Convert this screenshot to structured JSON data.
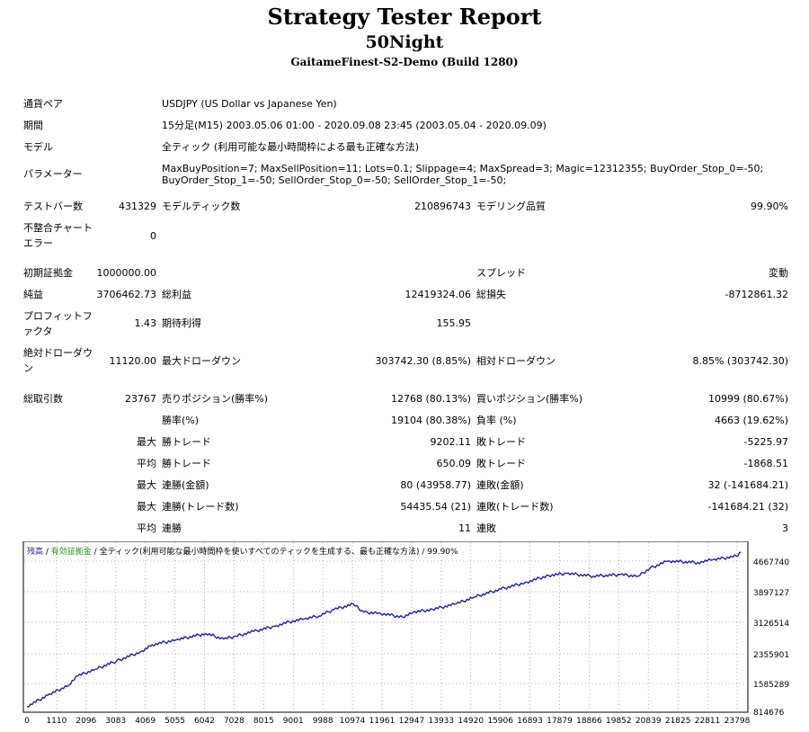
{
  "header": {
    "title": "Strategy Tester Report",
    "ea_name": "50Night",
    "server": "GaitameFinest-S2-Demo (Build 1280)"
  },
  "info": {
    "symbol_label": "通貨ペア",
    "symbol_value": "USDJPY (US Dollar vs Japanese Yen)",
    "period_label": "期間",
    "period_value": "15分足(M15) 2003.05.06 01:00 - 2020.09.08 23:45 (2003.05.04 - 2020.09.09)",
    "model_label": "モデル",
    "model_value": "全ティック (利用可能な最小時間枠による最も正確な方法)",
    "params_label": "パラメーター",
    "params_line1": "MaxBuyPosition=7; MaxSellPosition=11; Lots=0.1; Slippage=4; MaxSpread=3; Magic=12312355; BuyOrder_Stop_0=-50;",
    "params_line2": "BuyOrder_Stop_1=-50; SellOrder_Stop_0=-50; SellOrder_Stop_1=-50;"
  },
  "stats": {
    "bars_label": "テストバー数",
    "bars_value": "431329",
    "ticks_label": "モデルティック数",
    "ticks_value": "210896743",
    "quality_label": "モデリング品質",
    "quality_value": "99.90%",
    "mismatch_label_1": "不整合チャート",
    "mismatch_label_2": "エラー",
    "mismatch_value": "0",
    "deposit_label": "初期証拠金",
    "deposit_value": "1000000.00",
    "spread_label": "スプレッド",
    "spread_value": "変動",
    "net_label": "純益",
    "net_value": "3706462.73",
    "gross_profit_label": "総利益",
    "gross_profit_value": "12419324.06",
    "gross_loss_label": "総損失",
    "gross_loss_value": "-8712861.32",
    "pf_label_1": "プロフィットフ",
    "pf_label_2": "ァクタ",
    "pf_value": "1.43",
    "expected_label": "期待利得",
    "expected_value": "155.95",
    "abs_dd_label_1": "絶対ドローダウ",
    "abs_dd_label_2": "ン",
    "abs_dd_value": "11120.00",
    "max_dd_label": "最大ドローダウン",
    "max_dd_value": "303742.30 (8.85%)",
    "rel_dd_label": "相対ドローダウン",
    "rel_dd_value": "8.85% (303742.30)",
    "trades_label": "総取引数",
    "trades_value": "23767",
    "short_label": "売りポジション(勝率%)",
    "short_value": "12768 (80.13%)",
    "long_label": "買いポジション(勝率%)",
    "long_value": "10999 (80.67%)",
    "win_label": "勝率(%)",
    "win_value": "19104 (80.38%)",
    "loss_label": "負率 (%)",
    "loss_value": "4663 (19.62%)",
    "largest_prefix": "最大",
    "largest_win_label": "勝トレード",
    "largest_win_value": "9202.11",
    "largest_loss_label": "敗トレード",
    "largest_loss_value": "-5225.97",
    "average_prefix": "平均",
    "avg_win_label": "勝トレード",
    "avg_win_value": "650.09",
    "avg_loss_label": "敗トレード",
    "avg_loss_value": "-1868.51",
    "max_prefix": "最大",
    "cons_wins_money_label": "連勝(金額)",
    "cons_wins_money_value": "80 (43958.77)",
    "cons_losses_money_label": "連敗(金額)",
    "cons_losses_money_value": "32 (-141684.21)",
    "max2_prefix": "最大",
    "cons_profit_label": "連勝(トレード数)",
    "cons_profit_value": "54435.54 (21)",
    "cons_loss_label": "連敗(トレード数)",
    "cons_loss_value": "-141684.21 (32)",
    "avg2_prefix": "平均",
    "avg_cons_wins_label": "連勝",
    "avg_cons_wins_value": "11",
    "avg_cons_losses_label": "連敗",
    "avg_cons_losses_value": "3"
  },
  "legend": {
    "balance": "残高",
    "sep1": " / ",
    "equity": "有効証拠金",
    "sep2": " / ",
    "model": "全ティック(利用可能な最小時間枠を使いすべてのティックを生成する、最も正確な方法) / 99.90%"
  },
  "chart_data": {
    "type": "line",
    "x_tick_labels": [
      "0",
      "1110",
      "2096",
      "3083",
      "4069",
      "5055",
      "6042",
      "7028",
      "8015",
      "9001",
      "9988",
      "10974",
      "11961",
      "12947",
      "13933",
      "14920",
      "15906",
      "16893",
      "17879",
      "18866",
      "19852",
      "20839",
      "21825",
      "22811",
      "23798"
    ],
    "y_tick_labels": [
      "4667740",
      "3897127",
      "3126514",
      "2355901",
      "1585289",
      "814676"
    ],
    "xlim": [
      0,
      24000
    ],
    "ylim": [
      814676,
      4900000
    ],
    "grid": true,
    "series": [
      {
        "color": "#1f1fa8",
        "x": [
          0,
          700,
          1400,
          1700,
          2300,
          3000,
          3800,
          4200,
          5000,
          6000,
          6600,
          7000,
          7600,
          8300,
          8800,
          9300,
          9800,
          10300,
          10950,
          11300,
          11800,
          12600,
          12950,
          13600,
          14400,
          15000,
          15900,
          16700,
          17500,
          18100,
          19000,
          19900,
          20500,
          20900,
          21500,
          22500,
          23000,
          23798,
          23950
        ],
        "y": [
          870000,
          1150000,
          1400000,
          1630000,
          1800000,
          2000000,
          2230000,
          2410000,
          2530000,
          2690000,
          2550000,
          2620000,
          2740000,
          2870000,
          2980000,
          3050000,
          3130000,
          3290000,
          3420000,
          3220000,
          3200000,
          3100000,
          3220000,
          3290000,
          3430000,
          3600000,
          3800000,
          3960000,
          4140000,
          4190000,
          4120000,
          4160000,
          4120000,
          4320000,
          4500000,
          4460000,
          4530000,
          4620000,
          4720000
        ]
      }
    ]
  }
}
